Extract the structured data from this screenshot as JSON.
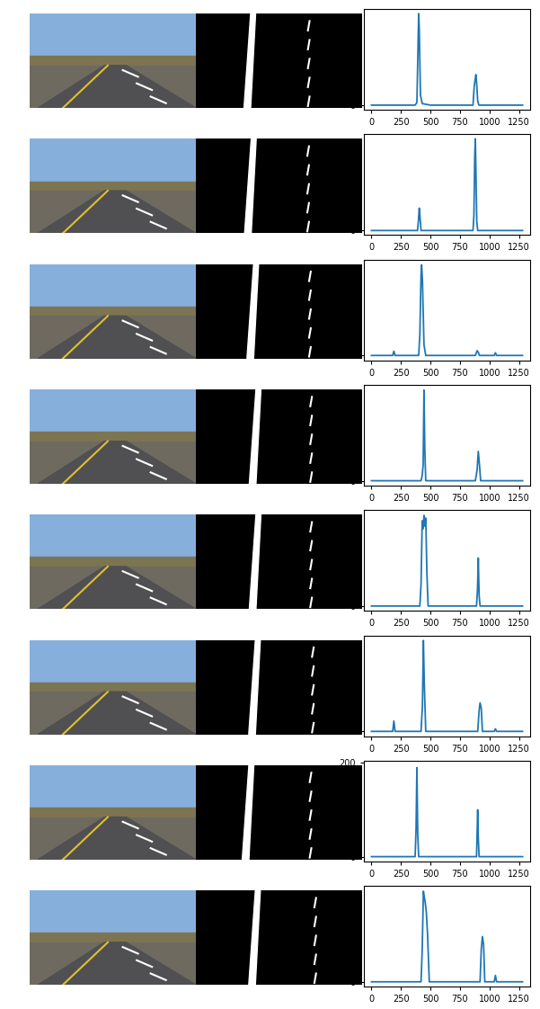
{
  "chart_data": [
    {
      "type": "line",
      "color": "#1f77b4",
      "x": [
        0,
        370,
        385,
        395,
        400,
        405,
        415,
        430,
        500,
        860,
        870,
        878,
        885,
        892,
        900,
        910,
        1280
      ],
      "values": [
        0,
        0,
        5,
        120,
        180,
        150,
        20,
        3,
        0,
        0,
        35,
        50,
        60,
        40,
        8,
        0,
        0
      ],
      "xlim": [
        -64,
        1344
      ],
      "xticks": [
        0,
        250,
        500,
        750,
        1000,
        1250
      ],
      "ylim": [
        -9,
        189
      ],
      "yticks": [
        0
      ]
    },
    {
      "type": "line",
      "color": "#1f77b4",
      "x": [
        0,
        390,
        398,
        405,
        412,
        420,
        860,
        868,
        875,
        880,
        885,
        892,
        900,
        1280
      ],
      "values": [
        0,
        0,
        20,
        45,
        25,
        0,
        0,
        30,
        150,
        185,
        120,
        20,
        0,
        0
      ],
      "xlim": [
        -64,
        1344
      ],
      "xticks": [
        0,
        250,
        500,
        750,
        1000,
        1250
      ],
      "ylim": [
        -9,
        194
      ],
      "yticks": [
        0
      ]
    },
    {
      "type": "line",
      "color": "#1f77b4",
      "x": [
        0,
        180,
        190,
        200,
        400,
        410,
        420,
        425,
        432,
        445,
        460,
        880,
        895,
        905,
        915,
        1040,
        1050,
        1060,
        1280
      ],
      "values": [
        0,
        0,
        8,
        0,
        0,
        40,
        150,
        170,
        140,
        20,
        0,
        0,
        9,
        6,
        0,
        0,
        5,
        0,
        0
      ],
      "xlim": [
        -64,
        1344
      ],
      "xticks": [
        0,
        250,
        500,
        750,
        1000,
        1250
      ],
      "ylim": [
        -9,
        180
      ],
      "yticks": [
        0
      ]
    },
    {
      "type": "line",
      "color": "#1f77b4",
      "x": [
        0,
        420,
        430,
        438,
        445,
        452,
        460,
        880,
        895,
        905,
        915,
        925,
        1280
      ],
      "values": [
        0,
        0,
        10,
        30,
        170,
        60,
        0,
        0,
        20,
        55,
        30,
        0,
        0
      ],
      "xlim": [
        -64,
        1344
      ],
      "xticks": [
        0,
        250,
        500,
        750,
        1000,
        1250
      ],
      "ylim": [
        -9,
        180
      ],
      "yticks": [
        0
      ]
    },
    {
      "type": "line",
      "color": "#1f77b4",
      "x": [
        0,
        410,
        420,
        430,
        438,
        445,
        452,
        460,
        470,
        480,
        890,
        898,
        905,
        912,
        920,
        1280
      ],
      "values": [
        0,
        0,
        40,
        160,
        145,
        170,
        150,
        165,
        60,
        0,
        0,
        30,
        90,
        20,
        0,
        0
      ],
      "xlim": [
        -64,
        1344
      ],
      "xticks": [
        0,
        250,
        500,
        750,
        1000,
        1250
      ],
      "ylim": [
        -9,
        180
      ],
      "yticks": [
        0
      ]
    },
    {
      "type": "line",
      "color": "#1f77b4",
      "x": [
        0,
        180,
        190,
        200,
        420,
        432,
        440,
        448,
        460,
        900,
        912,
        920,
        930,
        940,
        1040,
        1050,
        1060,
        1280
      ],
      "values": [
        0,
        0,
        20,
        0,
        0,
        50,
        175,
        90,
        0,
        0,
        40,
        55,
        45,
        0,
        0,
        5,
        0,
        0
      ],
      "xlim": [
        -64,
        1344
      ],
      "xticks": [
        0,
        250,
        500,
        750,
        1000,
        1250
      ],
      "ylim": [
        -9,
        185
      ],
      "yticks": [
        0
      ]
    },
    {
      "type": "line",
      "color": "#1f77b4",
      "x": [
        0,
        370,
        378,
        385,
        392,
        400,
        890,
        896,
        900,
        905,
        912,
        1280
      ],
      "values": [
        0,
        0,
        60,
        190,
        50,
        0,
        0,
        60,
        100,
        40,
        0,
        0
      ],
      "xlim": [
        -64,
        1344
      ],
      "xticks": [
        0,
        250,
        500,
        750,
        1000,
        1250
      ],
      "ylim": [
        -10,
        205
      ],
      "yticks": [
        0,
        200
      ]
    },
    {
      "type": "line",
      "color": "#1f77b4",
      "x": [
        0,
        420,
        430,
        440,
        447,
        455,
        465,
        475,
        490,
        920,
        930,
        940,
        950,
        960,
        1040,
        1050,
        1060,
        1280
      ],
      "values": [
        0,
        0,
        60,
        170,
        160,
        150,
        130,
        90,
        0,
        0,
        60,
        85,
        70,
        0,
        0,
        12,
        0,
        0
      ],
      "xlim": [
        -64,
        1344
      ],
      "xticks": [
        0,
        250,
        500,
        750,
        1000,
        1250
      ],
      "ylim": [
        -9,
        180
      ],
      "yticks": [
        0
      ]
    }
  ]
}
